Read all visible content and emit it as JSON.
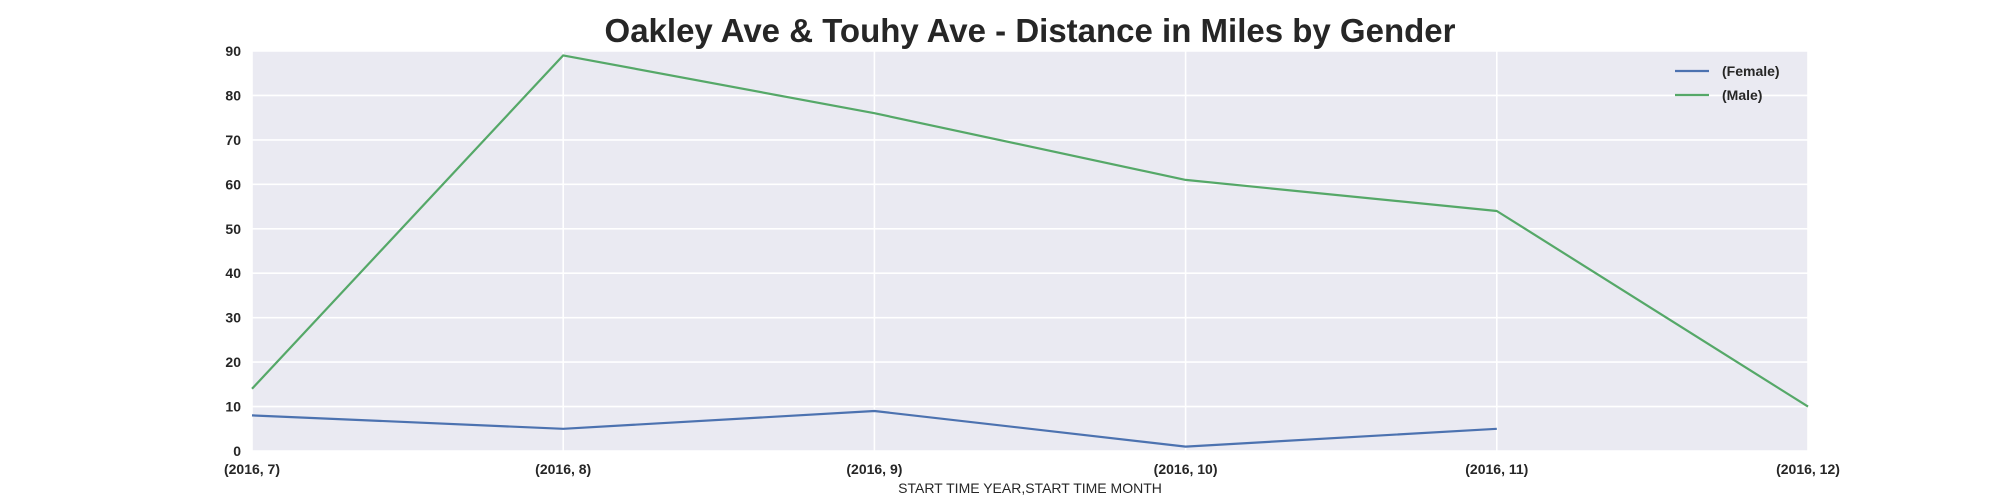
{
  "chart_data": {
    "type": "line",
    "title": "Oakley Ave & Touhy Ave - Distance in Miles by Gender",
    "xlabel": "START TIME YEAR,START TIME MONTH",
    "ylabel": "",
    "categories": [
      "(2016, 7)",
      "(2016, 8)",
      "(2016, 9)",
      "(2016, 10)",
      "(2016, 11)",
      "(2016, 12)"
    ],
    "ylim": [
      0,
      90
    ],
    "yticks": [
      0,
      10,
      20,
      30,
      40,
      50,
      60,
      70,
      80,
      90
    ],
    "grid": true,
    "legend_position": "top-right",
    "series": [
      {
        "name": "(Female)",
        "color": "#4c72b0",
        "values": [
          8,
          5,
          9,
          1,
          5,
          null
        ]
      },
      {
        "name": "(Male)",
        "color": "#55a868",
        "values": [
          14,
          89,
          76,
          61,
          54,
          10
        ]
      }
    ]
  },
  "style": {
    "plot_background": "#eaeaf2",
    "grid_color": "#ffffff",
    "text_color": "#262626"
  }
}
